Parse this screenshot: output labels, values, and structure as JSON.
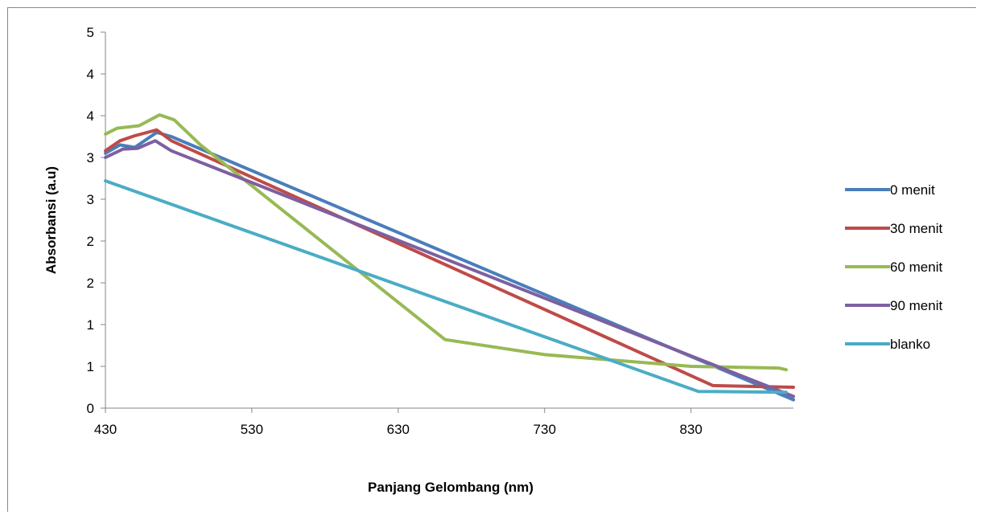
{
  "chart_data": {
    "type": "line",
    "xlabel": "Panjang Gelombang (nm)",
    "ylabel": "Absorbansi (a.u)",
    "xlim": [
      430,
      900
    ],
    "ylim": [
      0,
      4.5
    ],
    "x_ticks": [
      430,
      530,
      630,
      730,
      830
    ],
    "y_ticks": [
      0,
      0.5,
      1,
      1.5,
      2,
      2.5,
      3,
      3.5,
      4,
      4.5
    ],
    "y_tick_labels": [
      "0",
      "1",
      "1",
      "2",
      "2",
      "3",
      "3",
      "4",
      "4",
      "5"
    ],
    "grid": false,
    "legend_position": "right",
    "series": [
      {
        "name": "0 menit",
        "color": "#4a7ebb",
        "x": [
          430,
          440,
          450,
          465,
          475,
          900
        ],
        "y": [
          3.05,
          3.15,
          3.12,
          3.3,
          3.25,
          0.1
        ]
      },
      {
        "name": "30 menit",
        "color": "#be4b48",
        "x": [
          430,
          440,
          450,
          465,
          475,
          845,
          900
        ],
        "y": [
          3.08,
          3.2,
          3.26,
          3.33,
          3.2,
          0.27,
          0.25
        ]
      },
      {
        "name": "60 menit",
        "color": "#98b954",
        "x": [
          430,
          438,
          453,
          467,
          477,
          495,
          662,
          730,
          830,
          890,
          895
        ],
        "y": [
          3.28,
          3.35,
          3.38,
          3.51,
          3.45,
          3.15,
          0.82,
          0.64,
          0.5,
          0.48,
          0.46
        ]
      },
      {
        "name": "90 menit",
        "color": "#7d60a0",
        "x": [
          430,
          442,
          452,
          464,
          475,
          900
        ],
        "y": [
          3.0,
          3.1,
          3.11,
          3.2,
          3.08,
          0.14
        ]
      },
      {
        "name": "blanko",
        "color": "#4bacc6",
        "x": [
          430,
          835,
          895
        ],
        "y": [
          2.72,
          0.2,
          0.19
        ]
      }
    ]
  }
}
